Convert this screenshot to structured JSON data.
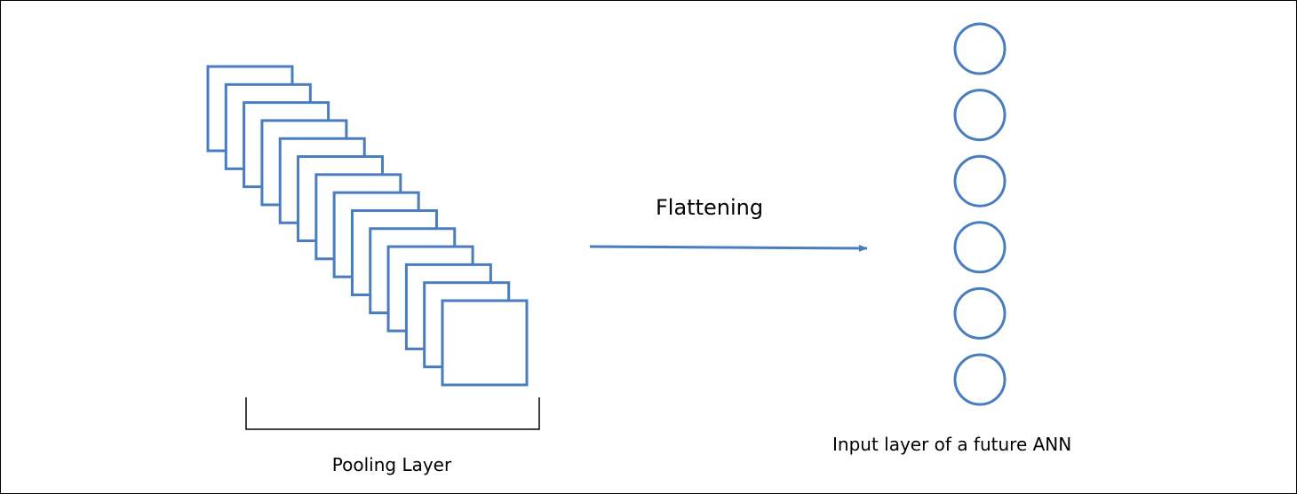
{
  "diagram": {
    "pooling_layer_label": "Pooling Layer",
    "flattening_label": "Flattening",
    "input_layer_label": "Input layer of a future ANN",
    "feature_map_count": 14,
    "neuron_count": 6
  },
  "colors": {
    "stroke_blue": "#4a7dbf",
    "border": "#000000",
    "background": "#ffffff"
  }
}
